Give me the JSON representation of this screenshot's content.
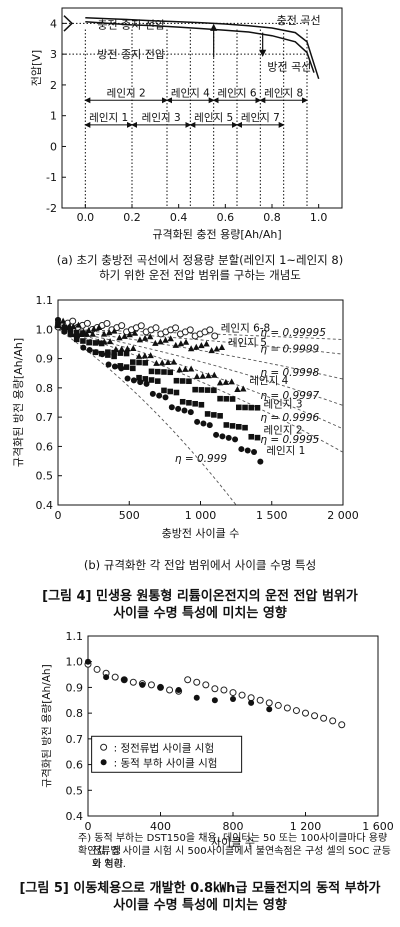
{
  "figure_4a": {
    "chart_data": {
      "type": "line",
      "xlabel": "규격화된 충전 용량[Ah/Ah]",
      "ylabel": "전압[V]",
      "xlim": [
        -0.1,
        1.1
      ],
      "ylim": [
        -2,
        4.5
      ],
      "x_ticks": [
        "0.0",
        "0.2",
        "0.4",
        "0.6",
        "0.8",
        "1.0"
      ],
      "y_ticks": [
        "4",
        "3",
        "2",
        "1",
        "0",
        "-1",
        "-2"
      ],
      "series": [
        {
          "name": "충전 곡선",
          "x": [
            0,
            0.1,
            0.2,
            0.3,
            0.4,
            0.5,
            0.6,
            0.7,
            0.8,
            0.9,
            0.95,
            1.0
          ],
          "y": [
            4.18,
            4.15,
            4.12,
            4.08,
            4.05,
            4.02,
            3.98,
            3.92,
            3.85,
            3.7,
            3.4,
            2.2
          ]
        },
        {
          "name": "방전 곡선",
          "x": [
            0,
            0.1,
            0.2,
            0.3,
            0.4,
            0.5,
            0.6,
            0.7,
            0.8,
            0.9,
            0.95,
            0.98
          ],
          "y": [
            4.05,
            4.0,
            3.95,
            3.92,
            3.88,
            3.83,
            3.78,
            3.72,
            3.6,
            3.4,
            3.05,
            2.4
          ]
        }
      ],
      "annotations": [
        "충전 종지 전압",
        "방전 종지 전압",
        "충전 곡선",
        "방전 곡선"
      ],
      "ranges": [
        {
          "label": "레인지 1",
          "x0": 0.0,
          "x1": 0.2,
          "y": 0.7
        },
        {
          "label": "레인지 2",
          "x0": 0.0,
          "x1": 0.35,
          "y": 1.5
        },
        {
          "label": "레인지 3",
          "x0": 0.2,
          "x1": 0.45,
          "y": 0.7
        },
        {
          "label": "레인지 4",
          "x0": 0.35,
          "x1": 0.55,
          "y": 1.5
        },
        {
          "label": "레인지 5",
          "x0": 0.45,
          "x1": 0.65,
          "y": 0.7
        },
        {
          "label": "레인지 6",
          "x0": 0.55,
          "x1": 0.75,
          "y": 1.5
        },
        {
          "label": "레인지 7",
          "x0": 0.65,
          "x1": 0.85,
          "y": 0.7
        },
        {
          "label": "레인지 8",
          "x0": 0.75,
          "x1": 0.95,
          "y": 1.5
        }
      ]
    },
    "caption_line1": "(a) 초기 충방전 곡선에서 정용량 분할(레인지 1~레인지 8)",
    "caption_line2": "하기 위한 운전 전압 범위를 구하는 개념도"
  },
  "figure_4b": {
    "chart_data": {
      "type": "scatter",
      "xlabel": "충방전 사이클 수",
      "ylabel": "규격화된 방전 용량[Ah/Ah]",
      "xlim": [
        0,
        2000
      ],
      "ylim": [
        0.4,
        1.1
      ],
      "x_ticks": [
        "0",
        "500",
        "1 000",
        "1 500",
        "2 000"
      ],
      "y_ticks": [
        "1.1",
        "1.0",
        "0.9",
        "0.8",
        "0.7",
        "0.6",
        "0.5",
        "0.4"
      ],
      "series": [
        {
          "name": "레인지 6-8",
          "end_x": 1100,
          "end_y": 0.985
        },
        {
          "name": "레인지 5",
          "end_x": 1150,
          "end_y": 0.93
        },
        {
          "name": "레인지 4",
          "end_x": 1300,
          "end_y": 0.8
        },
        {
          "name": "레인지 3",
          "end_x": 1400,
          "end_y": 0.72
        },
        {
          "name": "레인지 2",
          "end_x": 1400,
          "end_y": 0.63
        },
        {
          "name": "레인지 1",
          "end_x": 1420,
          "end_y": 0.56
        }
      ],
      "eta_labels": [
        "η = 0.99995",
        "η = 0.9999",
        "η = 0.9998",
        "η = 0.9997",
        "η = 0.9996",
        "η = 0.9995",
        "η = 0.999"
      ]
    },
    "caption": "(b) 규격화한 각 전압 범위에서 사이클 수명 특성"
  },
  "figure_4_title_line1": "[그림 4] 민생용 원통형 리튬이온전지의 운전 전압 범위가",
  "figure_4_title_line2": "사이클 수명 특성에 미치는 영향",
  "figure_5": {
    "chart_data": {
      "type": "scatter",
      "xlabel": "사이클 수",
      "ylabel": "규격화된 방전 용량[Ah/Ah]",
      "xlim": [
        0,
        1600
      ],
      "ylim": [
        0.4,
        1.1
      ],
      "x_ticks": [
        "0",
        "400",
        "800",
        "1 200",
        "1 600"
      ],
      "y_ticks": [
        "1.1",
        "1.0",
        "0.9",
        "0.8",
        "0.7",
        "0.6",
        "0.5",
        "0.4"
      ],
      "series": [
        {
          "name": "정전류법 사이클 시험",
          "x": [
            0,
            50,
            100,
            150,
            200,
            250,
            300,
            350,
            400,
            450,
            500,
            550,
            600,
            650,
            700,
            750,
            800,
            850,
            900,
            950,
            1000,
            1050,
            1100,
            1150,
            1200,
            1250,
            1300,
            1350,
            1400
          ],
          "y": [
            0.99,
            0.97,
            0.955,
            0.94,
            0.93,
            0.92,
            0.915,
            0.91,
            0.9,
            0.89,
            0.885,
            0.93,
            0.92,
            0.91,
            0.895,
            0.89,
            0.88,
            0.87,
            0.86,
            0.85,
            0.84,
            0.83,
            0.82,
            0.81,
            0.8,
            0.79,
            0.78,
            0.77,
            0.755
          ]
        },
        {
          "name": "동적 부하 사이클 시험",
          "x": [
            0,
            100,
            200,
            300,
            400,
            500,
            600,
            700,
            800,
            900,
            1000
          ],
          "y": [
            1.0,
            0.94,
            0.93,
            0.91,
            0.9,
            0.89,
            0.86,
            0.85,
            0.855,
            0.84,
            0.815
          ]
        }
      ],
      "legend_placement": "bottom-left"
    },
    "note_line1": "주) 동적 부하는 DST150을 채용, 데이터는 50 또는 100사이클마다 용량 확인값, 정",
    "note_line2": "전류법 사이클 시험 시 500사이클에서 불연속점은 구성 셀의 SOC 균등화 처리",
    "note_line3": "의 영향.",
    "title_line1": "[그림 5] 이동체용으로 개발한 0.8㎾h급 모듈전지의 동적 부하가",
    "title_line2": "사이클 수명 특성에 미치는 영향"
  }
}
